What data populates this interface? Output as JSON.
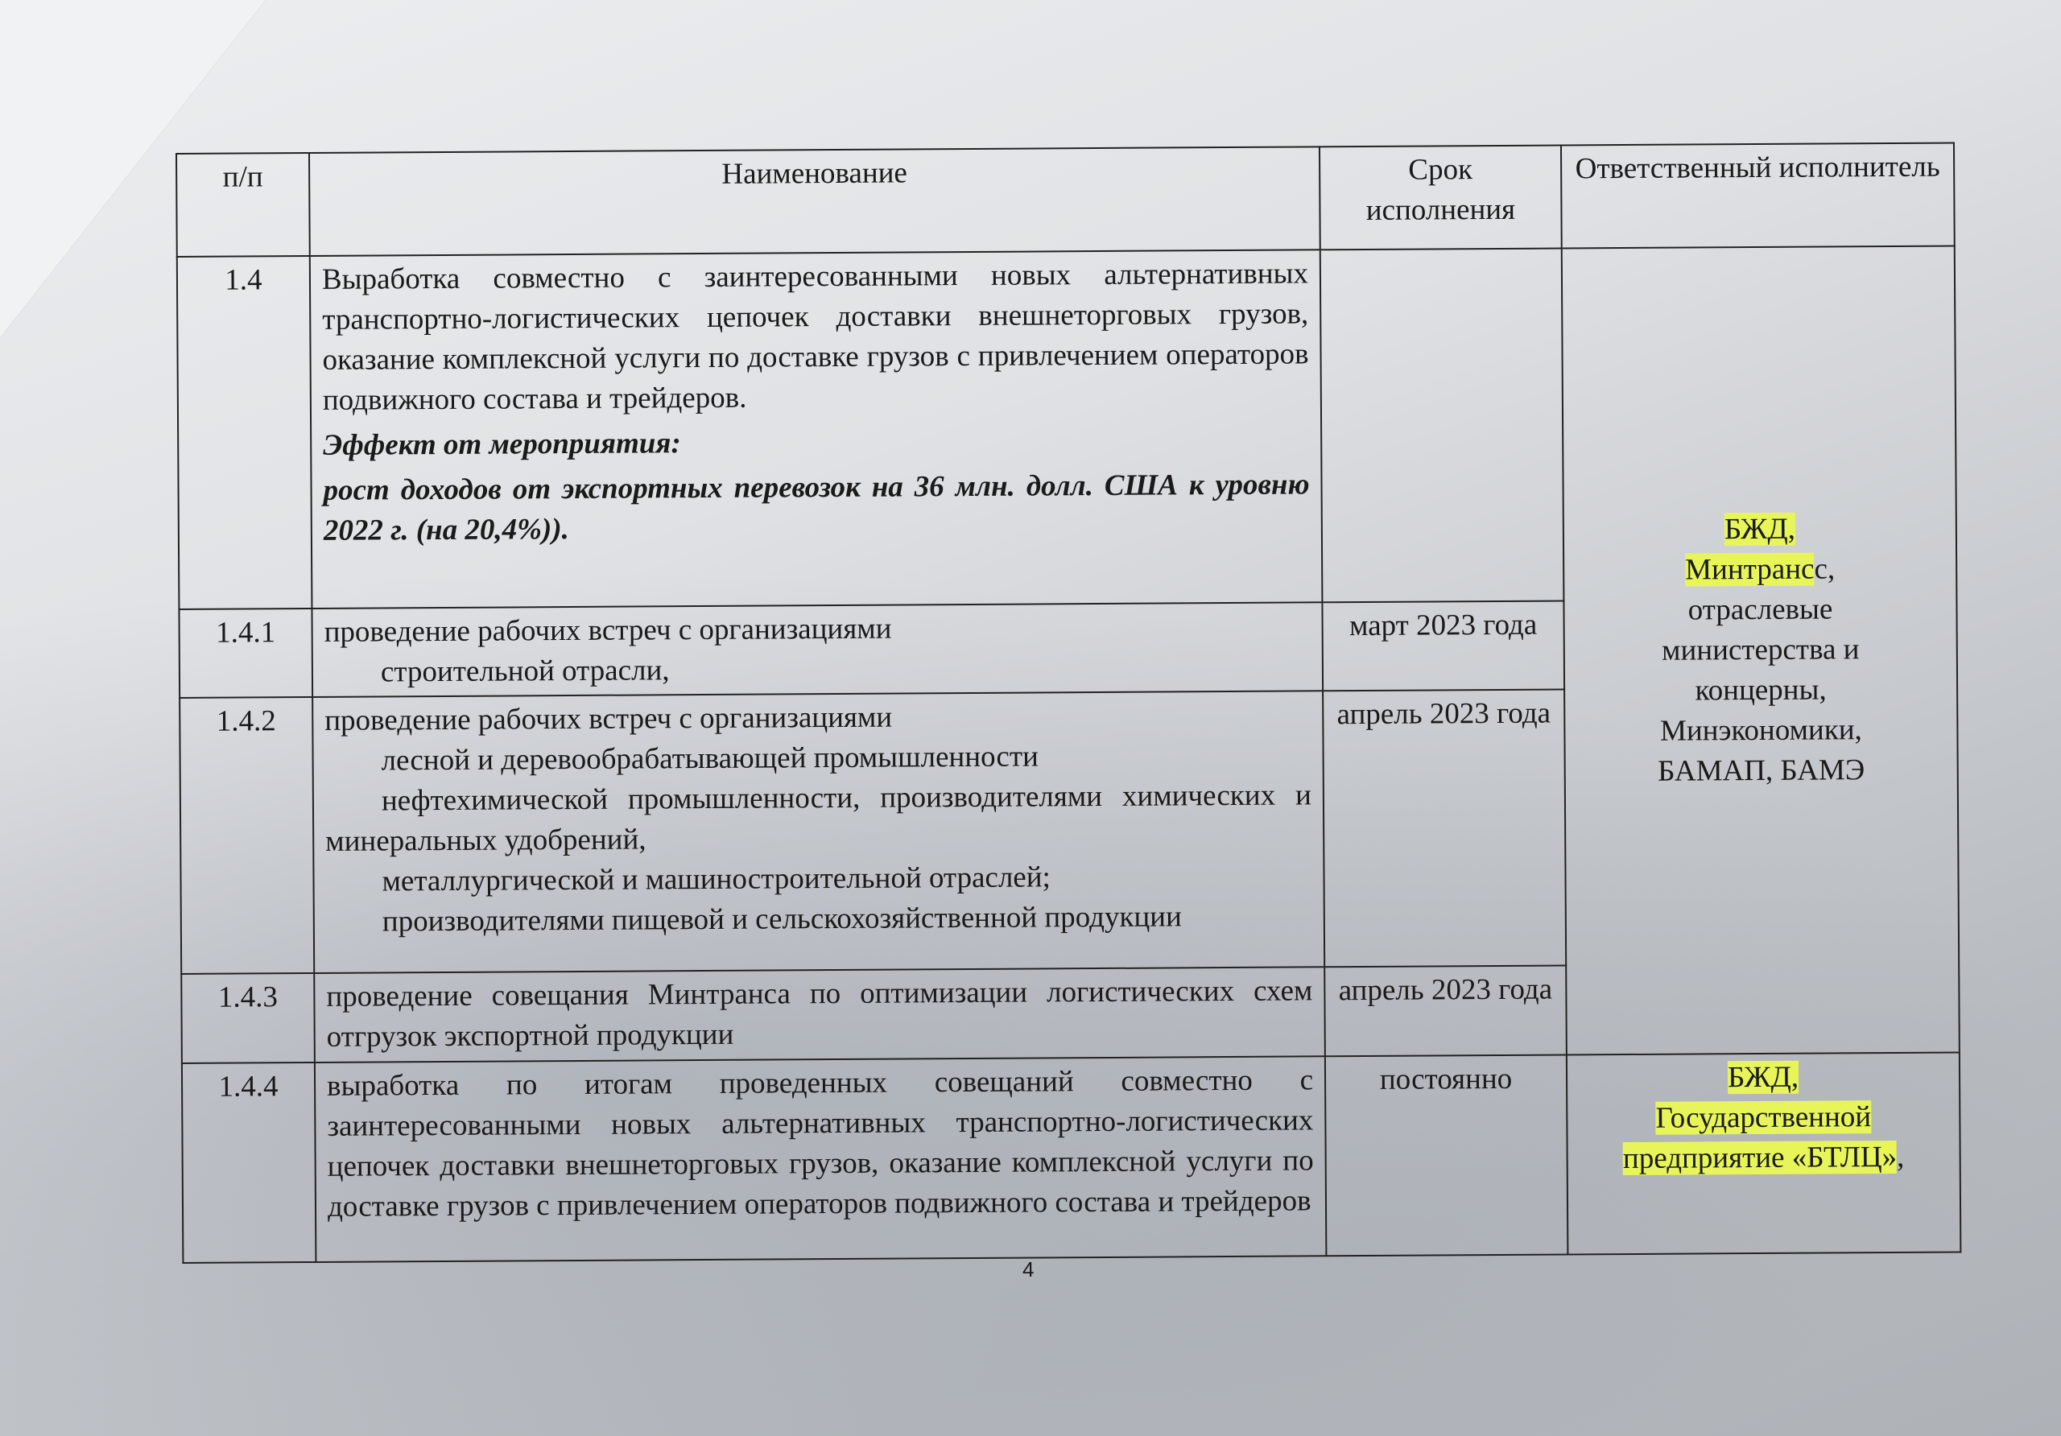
{
  "table": {
    "headers": [
      "п/п",
      "Наименование",
      "Срок исполнения",
      "Ответственный исполнитель"
    ],
    "rows": [
      {
        "num": "1.4",
        "text": "Выработка совместно с заинтересованными новых альтернативных транспортно-логистических цепочек доставки внешнеторговых грузов, оказание комплексной услуги по доставке грузов с привлечением операторов подвижного состава и трейдеров.",
        "effect_label": "Эффект от мероприятия:",
        "effect": "рост доходов от экспортных перевозок на 36 млн. долл. США к уровню 2022 г. (на 20,4%)).",
        "term": ""
      },
      {
        "num": "1.4.1",
        "lines": [
          "проведение рабочих встреч с организациями",
          "строительной отрасли,"
        ],
        "term": "март 2023 года"
      },
      {
        "num": "1.4.2",
        "lines": [
          "проведение рабочих встреч с организациями",
          "лесной и деревообрабатывающей промышленности",
          "нефтехимической промышленности, производителями химических и минеральных удобрений,",
          "металлургической и машиностроительной отраслей;",
          "производителями пищевой и сельскохозяйственной продукции"
        ],
        "term": "апрель 2023 года"
      },
      {
        "num": "1.4.3",
        "text": "проведение совещания Минтранса по оптимизации логистических схем отгрузок экспортной продукции",
        "term": "апрель 2023 года"
      },
      {
        "num": "1.4.4",
        "text": "выработка по итогам проведенных совещаний совместно с заинтересованными новых альтернативных транспортно-логистических цепочек доставки внешнеторговых грузов, оказание комплексной услуги по доставке грузов с привлечением операторов подвижного состава и трейдеров",
        "term": "постоянно"
      }
    ],
    "responsible_1": {
      "highlighted": [
        "БЖД,",
        "Минтранс"
      ],
      "rest": [
        "с,",
        "отраслевые",
        "министерства и",
        "концерны,",
        "Минэкономики,",
        "БАМАП, БАМЭ"
      ]
    },
    "responsible_2": {
      "lines": [
        "БЖД,",
        "Государственной",
        "предприятие «БТЛЦ»",
        ","
      ]
    }
  },
  "page_number": "4",
  "highlight_color": "#e8f55a"
}
